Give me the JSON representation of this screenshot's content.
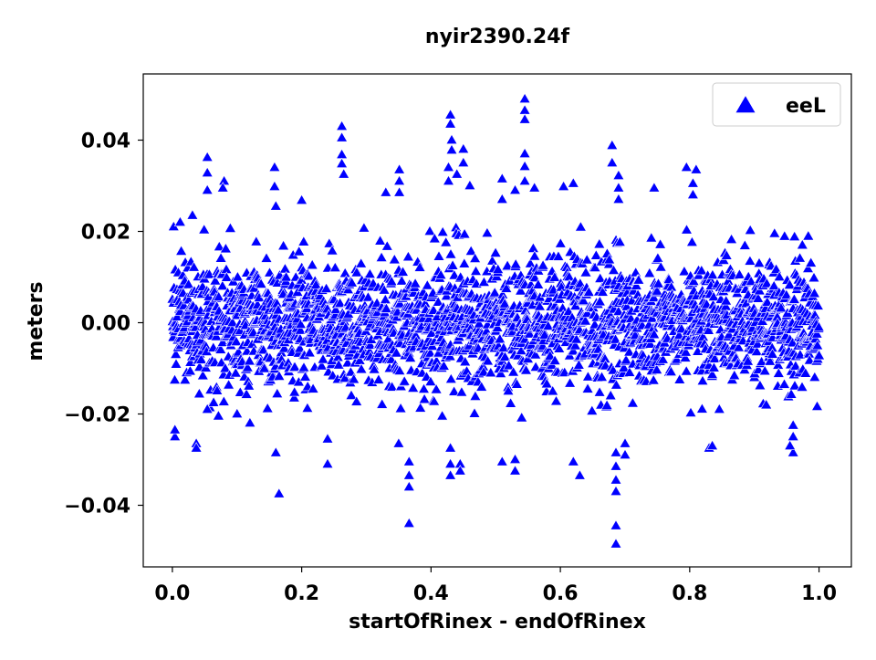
{
  "chart_data": {
    "type": "scatter",
    "title": "nyir2390.24f",
    "xlabel": "startOfRinex - endOfRinex",
    "ylabel": "meters",
    "xlim": [
      -0.045,
      1.05
    ],
    "ylim": [
      -0.0535,
      0.0545
    ],
    "xticks": [
      0.0,
      0.2,
      0.4,
      0.6,
      0.8,
      1.0
    ],
    "xtick_labels": [
      "0.0",
      "0.2",
      "0.4",
      "0.6",
      "0.8",
      "1.0"
    ],
    "yticks": [
      -0.04,
      -0.02,
      0.0,
      0.02,
      0.04
    ],
    "ytick_labels": [
      "−0.04",
      "−0.02",
      "0.00",
      "0.02",
      "0.04"
    ],
    "legend_position": "top-right",
    "grid": false,
    "marker": "triangle-up",
    "series": [
      {
        "name": "eeL",
        "color": "#0000ff",
        "edge_color": "#ffffff",
        "n_points": 2400,
        "y_std": 0.0072,
        "x_range": [
          0.0,
          1.0
        ],
        "outliers": [
          {
            "x": 0.002,
            "y": 0.021
          },
          {
            "x": 0.012,
            "y": 0.022
          },
          {
            "x": 0.031,
            "y": 0.0235
          },
          {
            "x": 0.054,
            "y": 0.0362
          },
          {
            "x": 0.054,
            "y": 0.0328
          },
          {
            "x": 0.054,
            "y": 0.029
          },
          {
            "x": 0.08,
            "y": 0.031
          },
          {
            "x": 0.078,
            "y": 0.0295
          },
          {
            "x": 0.158,
            "y": 0.034
          },
          {
            "x": 0.158,
            "y": 0.0298
          },
          {
            "x": 0.16,
            "y": 0.0255
          },
          {
            "x": 0.2,
            "y": 0.0268
          },
          {
            "x": 0.262,
            "y": 0.043
          },
          {
            "x": 0.262,
            "y": 0.0405
          },
          {
            "x": 0.262,
            "y": 0.0368
          },
          {
            "x": 0.262,
            "y": 0.0348
          },
          {
            "x": 0.265,
            "y": 0.0325
          },
          {
            "x": 0.33,
            "y": 0.0285
          },
          {
            "x": 0.351,
            "y": 0.0335
          },
          {
            "x": 0.351,
            "y": 0.031
          },
          {
            "x": 0.351,
            "y": 0.0285
          },
          {
            "x": 0.43,
            "y": 0.0455
          },
          {
            "x": 0.43,
            "y": 0.0435
          },
          {
            "x": 0.432,
            "y": 0.04
          },
          {
            "x": 0.432,
            "y": 0.0378
          },
          {
            "x": 0.427,
            "y": 0.034
          },
          {
            "x": 0.427,
            "y": 0.031
          },
          {
            "x": 0.44,
            "y": 0.0325
          },
          {
            "x": 0.45,
            "y": 0.038
          },
          {
            "x": 0.45,
            "y": 0.035
          },
          {
            "x": 0.46,
            "y": 0.03
          },
          {
            "x": 0.51,
            "y": 0.0315
          },
          {
            "x": 0.51,
            "y": 0.027
          },
          {
            "x": 0.53,
            "y": 0.029
          },
          {
            "x": 0.545,
            "y": 0.049
          },
          {
            "x": 0.545,
            "y": 0.0465
          },
          {
            "x": 0.545,
            "y": 0.0445
          },
          {
            "x": 0.545,
            "y": 0.037
          },
          {
            "x": 0.545,
            "y": 0.0342
          },
          {
            "x": 0.545,
            "y": 0.031
          },
          {
            "x": 0.56,
            "y": 0.0295
          },
          {
            "x": 0.605,
            "y": 0.0298
          },
          {
            "x": 0.62,
            "y": 0.0305
          },
          {
            "x": 0.68,
            "y": 0.0388
          },
          {
            "x": 0.68,
            "y": 0.035
          },
          {
            "x": 0.69,
            "y": 0.0322
          },
          {
            "x": 0.69,
            "y": 0.0295
          },
          {
            "x": 0.69,
            "y": 0.027
          },
          {
            "x": 0.745,
            "y": 0.0295
          },
          {
            "x": 0.795,
            "y": 0.034
          },
          {
            "x": 0.81,
            "y": 0.0335
          },
          {
            "x": 0.805,
            "y": 0.0305
          },
          {
            "x": 0.805,
            "y": 0.028
          },
          {
            "x": 0.054,
            "y": -0.019
          },
          {
            "x": 0.004,
            "y": -0.025
          },
          {
            "x": 0.004,
            "y": -0.0235
          },
          {
            "x": 0.037,
            "y": -0.0265
          },
          {
            "x": 0.037,
            "y": -0.0275
          },
          {
            "x": 0.1,
            "y": -0.02
          },
          {
            "x": 0.12,
            "y": -0.022
          },
          {
            "x": 0.16,
            "y": -0.0285
          },
          {
            "x": 0.165,
            "y": -0.0375
          },
          {
            "x": 0.24,
            "y": -0.031
          },
          {
            "x": 0.24,
            "y": -0.0255
          },
          {
            "x": 0.35,
            "y": -0.0265
          },
          {
            "x": 0.366,
            "y": -0.0335
          },
          {
            "x": 0.366,
            "y": -0.036
          },
          {
            "x": 0.366,
            "y": -0.0305
          },
          {
            "x": 0.366,
            "y": -0.044
          },
          {
            "x": 0.43,
            "y": -0.0335
          },
          {
            "x": 0.43,
            "y": -0.031
          },
          {
            "x": 0.43,
            "y": -0.0275
          },
          {
            "x": 0.445,
            "y": -0.031
          },
          {
            "x": 0.445,
            "y": -0.0325
          },
          {
            "x": 0.51,
            "y": -0.0305
          },
          {
            "x": 0.53,
            "y": -0.0325
          },
          {
            "x": 0.53,
            "y": -0.03
          },
          {
            "x": 0.62,
            "y": -0.0305
          },
          {
            "x": 0.63,
            "y": -0.0335
          },
          {
            "x": 0.686,
            "y": -0.0485
          },
          {
            "x": 0.686,
            "y": -0.0445
          },
          {
            "x": 0.686,
            "y": -0.037
          },
          {
            "x": 0.686,
            "y": -0.0345
          },
          {
            "x": 0.686,
            "y": -0.0315
          },
          {
            "x": 0.686,
            "y": -0.0285
          },
          {
            "x": 0.7,
            "y": -0.029
          },
          {
            "x": 0.7,
            "y": -0.0265
          },
          {
            "x": 0.83,
            "y": -0.0275
          },
          {
            "x": 0.835,
            "y": -0.027
          },
          {
            "x": 0.96,
            "y": -0.0285
          },
          {
            "x": 0.955,
            "y": -0.027
          },
          {
            "x": 0.96,
            "y": -0.025
          },
          {
            "x": 0.96,
            "y": -0.0225
          }
        ]
      }
    ]
  }
}
